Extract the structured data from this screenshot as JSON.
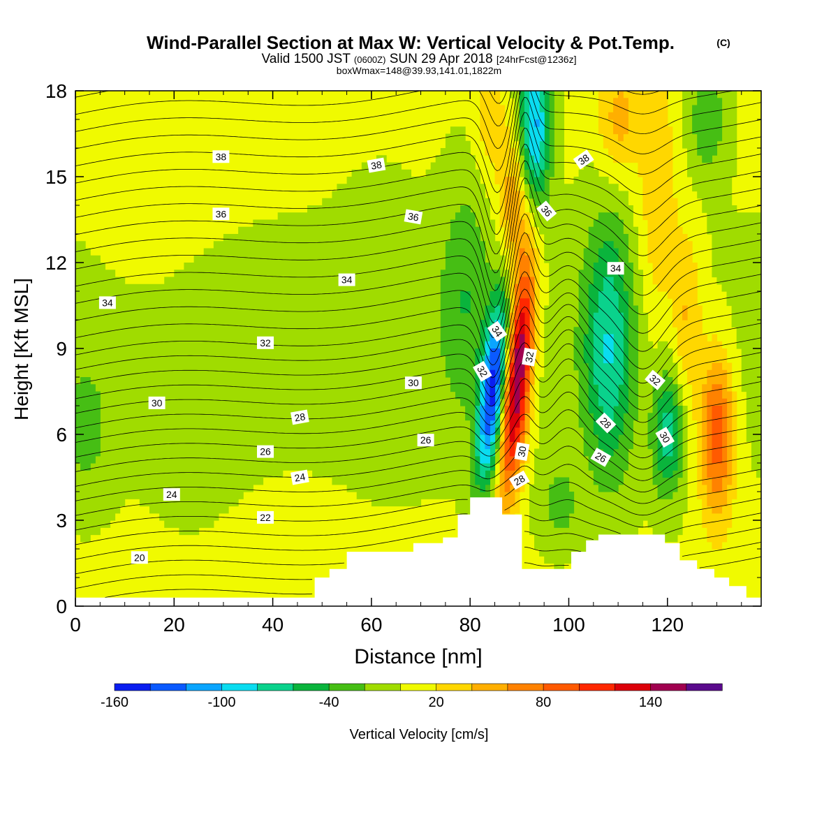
{
  "chart_data": {
    "type": "heatmap",
    "title": "Wind-Parallel Section at Max W: Vertical Velocity & Pot.Temp.",
    "title_mark": "(C)",
    "subtitle_main": "Valid 1500 JST",
    "subtitle_z": "(0600Z)",
    "subtitle_date": "SUN 29 Apr 2018",
    "subtitle_fcst": "[24hrFcst@1236z]",
    "subtitle2": "boxWmax=148@39.93,141.01,1822m",
    "xlabel": "Distance [nm]",
    "ylabel": "Height [Kft MSL]",
    "xlim": [
      0,
      139
    ],
    "ylim": [
      0,
      18
    ],
    "xticks": [
      0,
      20,
      40,
      60,
      80,
      100,
      120
    ],
    "yticks": [
      0,
      3,
      6,
      9,
      12,
      15,
      18
    ],
    "colorbar": {
      "label": "Vertical Velocity [cm/s]",
      "ticks": [
        -160,
        -100,
        -40,
        20,
        80,
        140
      ],
      "bins": [
        -160,
        -140,
        -120,
        -100,
        -80,
        -60,
        -40,
        -20,
        0,
        20,
        40,
        60,
        80,
        100,
        120,
        140,
        160,
        180
      ],
      "colors": [
        "#0a1ef0",
        "#0a5aff",
        "#0aa5ff",
        "#0adcf0",
        "#0ad28c",
        "#0ab43c",
        "#46be14",
        "#a0dc00",
        "#f0fa00",
        "#ffd700",
        "#ffaf00",
        "#ff8200",
        "#ff5a00",
        "#ff2800",
        "#dc000a",
        "#a00050",
        "#5a0a8c"
      ]
    },
    "contour_levels": [
      20,
      22,
      24,
      26,
      28,
      30,
      32,
      34,
      36,
      38
    ],
    "contour_labels": [
      {
        "text": "38",
        "x": 29.5,
        "y": 15.7,
        "rot": 0
      },
      {
        "text": "36",
        "x": 29.5,
        "y": 13.7,
        "rot": 0
      },
      {
        "text": "34",
        "x": 6.5,
        "y": 10.6,
        "rot": 0
      },
      {
        "text": "32",
        "x": 38.5,
        "y": 9.2,
        "rot": 0
      },
      {
        "text": "30",
        "x": 16.5,
        "y": 7.1,
        "rot": 0
      },
      {
        "text": "28",
        "x": 45.5,
        "y": 6.6,
        "rot": -10
      },
      {
        "text": "26",
        "x": 38.5,
        "y": 5.4,
        "rot": 0
      },
      {
        "text": "24",
        "x": 45.5,
        "y": 4.5,
        "rot": -10
      },
      {
        "text": "24",
        "x": 19.5,
        "y": 3.9,
        "rot": 0
      },
      {
        "text": "22",
        "x": 38.5,
        "y": 3.1,
        "rot": 0
      },
      {
        "text": "20",
        "x": 13.0,
        "y": 1.7,
        "rot": 0
      },
      {
        "text": "38",
        "x": 61.0,
        "y": 15.4,
        "rot": -10
      },
      {
        "text": "36",
        "x": 68.5,
        "y": 13.6,
        "rot": 10
      },
      {
        "text": "34",
        "x": 55.0,
        "y": 11.4,
        "rot": 0
      },
      {
        "text": "30",
        "x": 68.5,
        "y": 7.8,
        "rot": 0
      },
      {
        "text": "26",
        "x": 71.0,
        "y": 5.8,
        "rot": 0
      },
      {
        "text": "34",
        "x": 85.5,
        "y": 9.6,
        "rot": 55
      },
      {
        "text": "32",
        "x": 82.5,
        "y": 8.2,
        "rot": 60
      },
      {
        "text": "32",
        "x": 92.0,
        "y": 8.7,
        "rot": -80
      },
      {
        "text": "30",
        "x": 90.5,
        "y": 5.4,
        "rot": -80
      },
      {
        "text": "28",
        "x": 90.0,
        "y": 4.4,
        "rot": -30
      },
      {
        "text": "38",
        "x": 103.0,
        "y": 15.6,
        "rot": -35
      },
      {
        "text": "36",
        "x": 95.5,
        "y": 13.8,
        "rot": 50
      },
      {
        "text": "34",
        "x": 109.5,
        "y": 11.8,
        "rot": 0
      },
      {
        "text": "32",
        "x": 117.5,
        "y": 7.9,
        "rot": 40
      },
      {
        "text": "28",
        "x": 107.5,
        "y": 6.4,
        "rot": 45
      },
      {
        "text": "30",
        "x": 119.5,
        "y": 5.9,
        "rot": 60
      },
      {
        "text": "26",
        "x": 106.5,
        "y": 5.2,
        "rot": 30
      }
    ],
    "terrain": [
      [
        0,
        0.3
      ],
      [
        48.5,
        0.3
      ],
      [
        48.5,
        1.0
      ],
      [
        51.5,
        1.0
      ],
      [
        51.5,
        1.3
      ],
      [
        55,
        1.3
      ],
      [
        55,
        1.9
      ],
      [
        68.5,
        1.9
      ],
      [
        68.5,
        2.2
      ],
      [
        74.5,
        2.2
      ],
      [
        74.5,
        2.4
      ],
      [
        77.5,
        2.4
      ],
      [
        77.5,
        3.2
      ],
      [
        80,
        3.2
      ],
      [
        80,
        3.8
      ],
      [
        86.5,
        3.8
      ],
      [
        86.5,
        3.2
      ],
      [
        90.5,
        3.2
      ],
      [
        90.5,
        1.3
      ],
      [
        100.5,
        1.3
      ],
      [
        100.5,
        1.9
      ],
      [
        103.5,
        1.9
      ],
      [
        103.5,
        2.3
      ],
      [
        106,
        2.3
      ],
      [
        106,
        2.5
      ],
      [
        119.5,
        2.5
      ],
      [
        119.5,
        2.2
      ],
      [
        122.5,
        2.2
      ],
      [
        122.5,
        1.6
      ],
      [
        126,
        1.6
      ],
      [
        126,
        1.3
      ],
      [
        129.5,
        1.3
      ],
      [
        129.5,
        1.0
      ],
      [
        132.5,
        1.0
      ],
      [
        132.5,
        0.7
      ],
      [
        136,
        0.7
      ],
      [
        136,
        0.3
      ],
      [
        139,
        0.3
      ]
    ]
  }
}
